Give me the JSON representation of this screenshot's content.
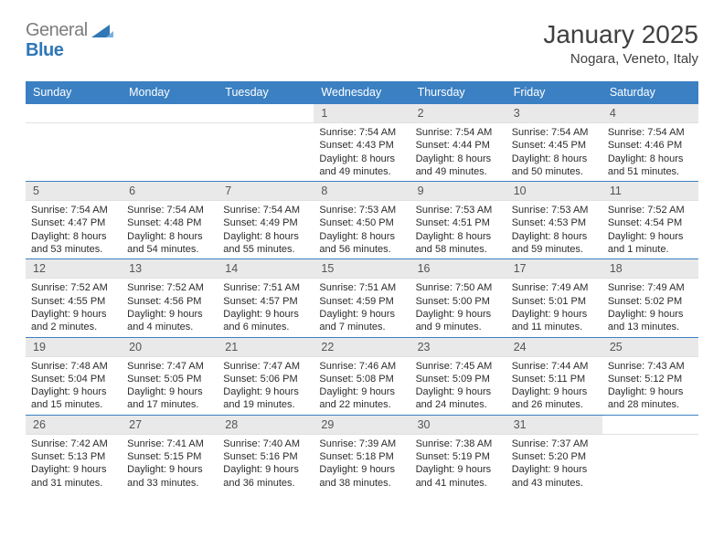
{
  "brand": {
    "general": "General",
    "blue": "Blue"
  },
  "title": "January 2025",
  "location": "Nogara, Veneto, Italy",
  "colors": {
    "header_bg": "#3b80c2",
    "header_fg": "#ffffff",
    "daynum_bg": "#e9e9e9",
    "row_border": "#3b80c2",
    "text": "#2b2b2b"
  },
  "weekdays": [
    "Sunday",
    "Monday",
    "Tuesday",
    "Wednesday",
    "Thursday",
    "Friday",
    "Saturday"
  ],
  "cells": [
    {
      "day": "",
      "sunrise": "",
      "sunset": "",
      "daylight": ""
    },
    {
      "day": "",
      "sunrise": "",
      "sunset": "",
      "daylight": ""
    },
    {
      "day": "",
      "sunrise": "",
      "sunset": "",
      "daylight": ""
    },
    {
      "day": "1",
      "sunrise": "Sunrise: 7:54 AM",
      "sunset": "Sunset: 4:43 PM",
      "daylight": "Daylight: 8 hours and 49 minutes."
    },
    {
      "day": "2",
      "sunrise": "Sunrise: 7:54 AM",
      "sunset": "Sunset: 4:44 PM",
      "daylight": "Daylight: 8 hours and 49 minutes."
    },
    {
      "day": "3",
      "sunrise": "Sunrise: 7:54 AM",
      "sunset": "Sunset: 4:45 PM",
      "daylight": "Daylight: 8 hours and 50 minutes."
    },
    {
      "day": "4",
      "sunrise": "Sunrise: 7:54 AM",
      "sunset": "Sunset: 4:46 PM",
      "daylight": "Daylight: 8 hours and 51 minutes."
    },
    {
      "day": "5",
      "sunrise": "Sunrise: 7:54 AM",
      "sunset": "Sunset: 4:47 PM",
      "daylight": "Daylight: 8 hours and 53 minutes."
    },
    {
      "day": "6",
      "sunrise": "Sunrise: 7:54 AM",
      "sunset": "Sunset: 4:48 PM",
      "daylight": "Daylight: 8 hours and 54 minutes."
    },
    {
      "day": "7",
      "sunrise": "Sunrise: 7:54 AM",
      "sunset": "Sunset: 4:49 PM",
      "daylight": "Daylight: 8 hours and 55 minutes."
    },
    {
      "day": "8",
      "sunrise": "Sunrise: 7:53 AM",
      "sunset": "Sunset: 4:50 PM",
      "daylight": "Daylight: 8 hours and 56 minutes."
    },
    {
      "day": "9",
      "sunrise": "Sunrise: 7:53 AM",
      "sunset": "Sunset: 4:51 PM",
      "daylight": "Daylight: 8 hours and 58 minutes."
    },
    {
      "day": "10",
      "sunrise": "Sunrise: 7:53 AM",
      "sunset": "Sunset: 4:53 PM",
      "daylight": "Daylight: 8 hours and 59 minutes."
    },
    {
      "day": "11",
      "sunrise": "Sunrise: 7:52 AM",
      "sunset": "Sunset: 4:54 PM",
      "daylight": "Daylight: 9 hours and 1 minute."
    },
    {
      "day": "12",
      "sunrise": "Sunrise: 7:52 AM",
      "sunset": "Sunset: 4:55 PM",
      "daylight": "Daylight: 9 hours and 2 minutes."
    },
    {
      "day": "13",
      "sunrise": "Sunrise: 7:52 AM",
      "sunset": "Sunset: 4:56 PM",
      "daylight": "Daylight: 9 hours and 4 minutes."
    },
    {
      "day": "14",
      "sunrise": "Sunrise: 7:51 AM",
      "sunset": "Sunset: 4:57 PM",
      "daylight": "Daylight: 9 hours and 6 minutes."
    },
    {
      "day": "15",
      "sunrise": "Sunrise: 7:51 AM",
      "sunset": "Sunset: 4:59 PM",
      "daylight": "Daylight: 9 hours and 7 minutes."
    },
    {
      "day": "16",
      "sunrise": "Sunrise: 7:50 AM",
      "sunset": "Sunset: 5:00 PM",
      "daylight": "Daylight: 9 hours and 9 minutes."
    },
    {
      "day": "17",
      "sunrise": "Sunrise: 7:49 AM",
      "sunset": "Sunset: 5:01 PM",
      "daylight": "Daylight: 9 hours and 11 minutes."
    },
    {
      "day": "18",
      "sunrise": "Sunrise: 7:49 AM",
      "sunset": "Sunset: 5:02 PM",
      "daylight": "Daylight: 9 hours and 13 minutes."
    },
    {
      "day": "19",
      "sunrise": "Sunrise: 7:48 AM",
      "sunset": "Sunset: 5:04 PM",
      "daylight": "Daylight: 9 hours and 15 minutes."
    },
    {
      "day": "20",
      "sunrise": "Sunrise: 7:47 AM",
      "sunset": "Sunset: 5:05 PM",
      "daylight": "Daylight: 9 hours and 17 minutes."
    },
    {
      "day": "21",
      "sunrise": "Sunrise: 7:47 AM",
      "sunset": "Sunset: 5:06 PM",
      "daylight": "Daylight: 9 hours and 19 minutes."
    },
    {
      "day": "22",
      "sunrise": "Sunrise: 7:46 AM",
      "sunset": "Sunset: 5:08 PM",
      "daylight": "Daylight: 9 hours and 22 minutes."
    },
    {
      "day": "23",
      "sunrise": "Sunrise: 7:45 AM",
      "sunset": "Sunset: 5:09 PM",
      "daylight": "Daylight: 9 hours and 24 minutes."
    },
    {
      "day": "24",
      "sunrise": "Sunrise: 7:44 AM",
      "sunset": "Sunset: 5:11 PM",
      "daylight": "Daylight: 9 hours and 26 minutes."
    },
    {
      "day": "25",
      "sunrise": "Sunrise: 7:43 AM",
      "sunset": "Sunset: 5:12 PM",
      "daylight": "Daylight: 9 hours and 28 minutes."
    },
    {
      "day": "26",
      "sunrise": "Sunrise: 7:42 AM",
      "sunset": "Sunset: 5:13 PM",
      "daylight": "Daylight: 9 hours and 31 minutes."
    },
    {
      "day": "27",
      "sunrise": "Sunrise: 7:41 AM",
      "sunset": "Sunset: 5:15 PM",
      "daylight": "Daylight: 9 hours and 33 minutes."
    },
    {
      "day": "28",
      "sunrise": "Sunrise: 7:40 AM",
      "sunset": "Sunset: 5:16 PM",
      "daylight": "Daylight: 9 hours and 36 minutes."
    },
    {
      "day": "29",
      "sunrise": "Sunrise: 7:39 AM",
      "sunset": "Sunset: 5:18 PM",
      "daylight": "Daylight: 9 hours and 38 minutes."
    },
    {
      "day": "30",
      "sunrise": "Sunrise: 7:38 AM",
      "sunset": "Sunset: 5:19 PM",
      "daylight": "Daylight: 9 hours and 41 minutes."
    },
    {
      "day": "31",
      "sunrise": "Sunrise: 7:37 AM",
      "sunset": "Sunset: 5:20 PM",
      "daylight": "Daylight: 9 hours and 43 minutes."
    },
    {
      "day": "",
      "sunrise": "",
      "sunset": "",
      "daylight": ""
    }
  ]
}
